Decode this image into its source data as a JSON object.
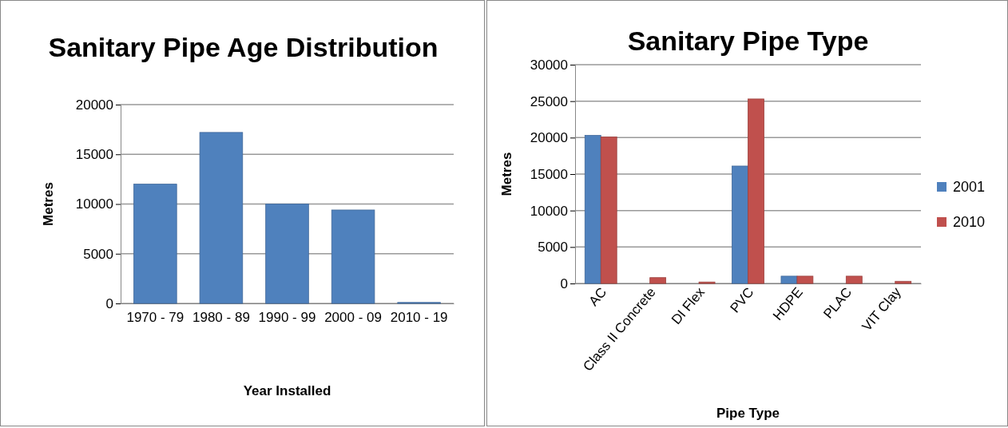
{
  "chart_data": [
    {
      "type": "bar",
      "title": "Sanitary Pipe Age Distribution",
      "xlabel": "Year Installed",
      "ylabel": "Metres",
      "categories": [
        "1970 - 79",
        "1980 - 89",
        "1990 - 99",
        "2000 - 09",
        "2010 - 19"
      ],
      "series": [
        {
          "color": "#4f81bd",
          "values": [
            12000,
            17200,
            10000,
            9400,
            100
          ]
        }
      ],
      "ylim": [
        0,
        20000
      ],
      "yticks": [
        0,
        5000,
        10000,
        15000,
        20000
      ],
      "grid": "y",
      "legend": false
    },
    {
      "type": "bar",
      "title": "Sanitary Pipe Type",
      "xlabel": "Pipe Type",
      "ylabel": "Metres",
      "categories": [
        "AC",
        "Class II Concrete",
        "DI Flex",
        "PVC",
        "HDPE",
        "PLAC",
        "VIT Clay"
      ],
      "series": [
        {
          "name": "2001",
          "color": "#4f81bd",
          "values": [
            20300,
            null,
            null,
            16100,
            1000,
            null,
            null
          ]
        },
        {
          "name": "2010",
          "color": "#c0504d",
          "values": [
            20100,
            800,
            200,
            25300,
            1000,
            1000,
            300
          ]
        }
      ],
      "ylim": [
        0,
        30000
      ],
      "yticks": [
        0,
        5000,
        10000,
        15000,
        20000,
        25000,
        30000
      ],
      "grid": "y",
      "legend": "right"
    }
  ]
}
